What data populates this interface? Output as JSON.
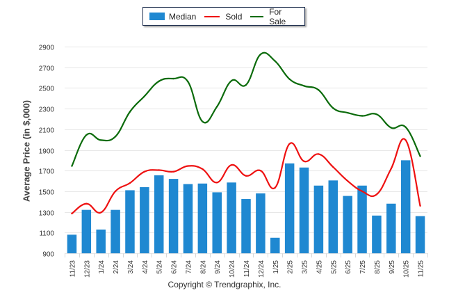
{
  "chart_data": {
    "type": "bar",
    "title": "",
    "xlabel": "",
    "ylabel": "Average Price (in $,000)",
    "ylim": [
      900,
      2900
    ],
    "yticks": [
      900,
      1100,
      1300,
      1500,
      1700,
      1900,
      2100,
      2300,
      2500,
      2700,
      2900
    ],
    "grid": true,
    "legend_position": "top-center",
    "categories": [
      "11/23",
      "12/23",
      "1/24",
      "2/24",
      "3/24",
      "4/24",
      "5/24",
      "6/24",
      "7/24",
      "8/24",
      "9/24",
      "10/24",
      "11/24",
      "12/24",
      "1/25",
      "2/25",
      "3/25",
      "4/25",
      "5/25",
      "6/25",
      "7/25",
      "8/25",
      "9/25",
      "10/25",
      "11/25"
    ],
    "series": [
      {
        "name": "Median",
        "type": "bar",
        "color": "#1f88d1",
        "values": [
          1080,
          1320,
          1130,
          1320,
          1510,
          1540,
          1655,
          1620,
          1570,
          1575,
          1490,
          1585,
          1425,
          1480,
          1050,
          1770,
          1730,
          1555,
          1605,
          1455,
          1555,
          1265,
          1380,
          1800,
          1260
        ]
      },
      {
        "name": "Sold",
        "type": "line",
        "color": "#ee1111",
        "values": [
          1285,
          1380,
          1295,
          1500,
          1580,
          1690,
          1705,
          1690,
          1745,
          1715,
          1585,
          1755,
          1650,
          1700,
          1535,
          1960,
          1790,
          1860,
          1735,
          1600,
          1500,
          1470,
          1720,
          1995,
          1360
        ]
      },
      {
        "name": "For Sale",
        "type": "line",
        "color": "#0b6b0b",
        "values": [
          1745,
          2045,
          1995,
          2030,
          2270,
          2420,
          2565,
          2590,
          2560,
          2175,
          2320,
          2570,
          2530,
          2825,
          2760,
          2585,
          2520,
          2480,
          2305,
          2260,
          2230,
          2245,
          2115,
          2120,
          1840
        ]
      }
    ],
    "footer": "Copyright © Trendgraphix, Inc."
  },
  "legend": {
    "items": [
      {
        "label": "Median",
        "color": "#1f88d1",
        "kind": "bar"
      },
      {
        "label": "Sold",
        "color": "#ee1111",
        "kind": "line"
      },
      {
        "label": "For Sale",
        "color": "#0b6b0b",
        "kind": "line"
      }
    ]
  },
  "colors": {
    "grid": "#e6e6e6",
    "axis_text": "#333333"
  }
}
